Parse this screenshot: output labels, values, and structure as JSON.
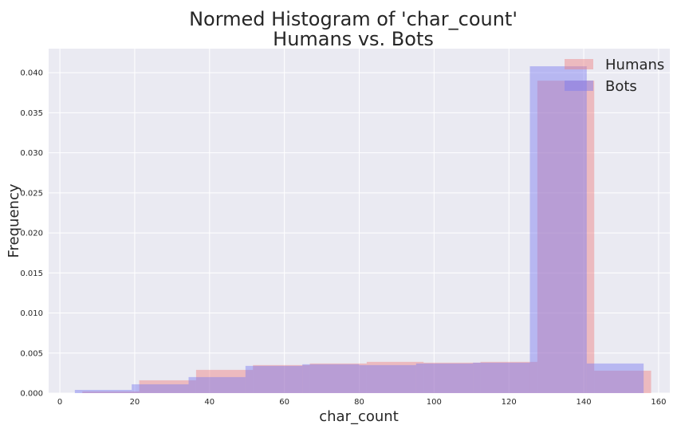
{
  "chart_data": {
    "type": "bar",
    "title": [
      "Normed Histogram of 'char_count'",
      "Humans vs. Bots"
    ],
    "xlabel": "char_count",
    "ylabel": "Frequency",
    "xlim": [
      -3,
      163
    ],
    "ylim": [
      0,
      0.043
    ],
    "xticks": [
      0,
      20,
      40,
      60,
      80,
      100,
      120,
      140,
      160
    ],
    "yticks": [
      0.0,
      0.005,
      0.01,
      0.015,
      0.02,
      0.025,
      0.03,
      0.035,
      0.04
    ],
    "ytick_labels": [
      "0.000",
      "0.005",
      "0.010",
      "0.015",
      "0.020",
      "0.025",
      "0.030",
      "0.035",
      "0.040"
    ],
    "grid": true,
    "legend_position": "top-right",
    "series": [
      {
        "name": "Humans",
        "color": "#f08080",
        "edges": [
          6,
          21.2,
          36.4,
          51.6,
          66.8,
          82,
          97.2,
          112.4,
          127.6,
          142.8,
          158
        ],
        "values": [
          0.0002,
          0.0016,
          0.0029,
          0.0035,
          0.0037,
          0.0039,
          0.0038,
          0.0039,
          0.039,
          0.0028
        ]
      },
      {
        "name": "Bots",
        "color": "#7b7bf0",
        "edges": [
          4,
          19.2,
          34.4,
          49.6,
          64.8,
          80,
          95.2,
          110.4,
          125.6,
          140.8,
          156
        ],
        "values": [
          0.0004,
          0.0011,
          0.002,
          0.0034,
          0.0036,
          0.0035,
          0.0037,
          0.0038,
          0.0408,
          0.0037
        ]
      }
    ]
  }
}
